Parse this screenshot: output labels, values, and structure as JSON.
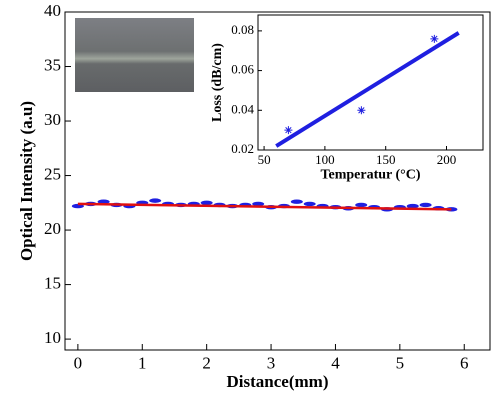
{
  "chart_data": [
    {
      "type": "line",
      "xlabel": "Distance(mm)",
      "ylabel": "Optical Intensity (a.u)",
      "xlim": [
        -0.2,
        6.4
      ],
      "ylim": [
        9,
        40
      ],
      "xticks": [
        0,
        1,
        2,
        3,
        4,
        5,
        6
      ],
      "yticks": [
        10,
        15,
        20,
        25,
        30,
        35,
        40
      ],
      "series": [
        {
          "color": "#1f1fe0",
          "style": "markers",
          "marker": "dot",
          "x": [
            0,
            0.2,
            0.4,
            0.6,
            0.8,
            1,
            1.2,
            1.4,
            1.6,
            1.8,
            2,
            2.2,
            2.4,
            2.6,
            2.8,
            3,
            3.2,
            3.4,
            3.6,
            3.8,
            4,
            4.2,
            4.4,
            4.6,
            4.8,
            5,
            5.2,
            5.4,
            5.6,
            5.8
          ],
          "values": [
            22.2,
            22.4,
            22.6,
            22.3,
            22.2,
            22.5,
            22.7,
            22.4,
            22.3,
            22.4,
            22.5,
            22.3,
            22.2,
            22.3,
            22.4,
            22.1,
            22.2,
            22.6,
            22.4,
            22.2,
            22.1,
            22.0,
            22.3,
            22.1,
            21.9,
            22.1,
            22.2,
            22.3,
            22.0,
            21.9
          ]
        },
        {
          "color": "#e01010",
          "style": "line",
          "x": [
            0,
            5.8
          ],
          "values": [
            22.4,
            21.9
          ]
        }
      ]
    },
    {
      "type": "line",
      "xlabel": "Temperatur (°C)",
      "ylabel": "Loss (dB/cm)",
      "xlim": [
        45,
        230
      ],
      "ylim": [
        0.02,
        0.088
      ],
      "xticks": [
        50,
        100,
        150,
        200
      ],
      "yticks": [
        0.02,
        0.04,
        0.06,
        0.08
      ],
      "series": [
        {
          "color": "#1f1fe0",
          "style": "markers",
          "marker": "asterisk",
          "x": [
            70,
            130,
            190
          ],
          "values": [
            0.03,
            0.04,
            0.076
          ]
        },
        {
          "color": "#1f1fe0",
          "style": "line",
          "x": [
            60,
            210
          ],
          "values": [
            0.022,
            0.079
          ]
        }
      ]
    }
  ]
}
